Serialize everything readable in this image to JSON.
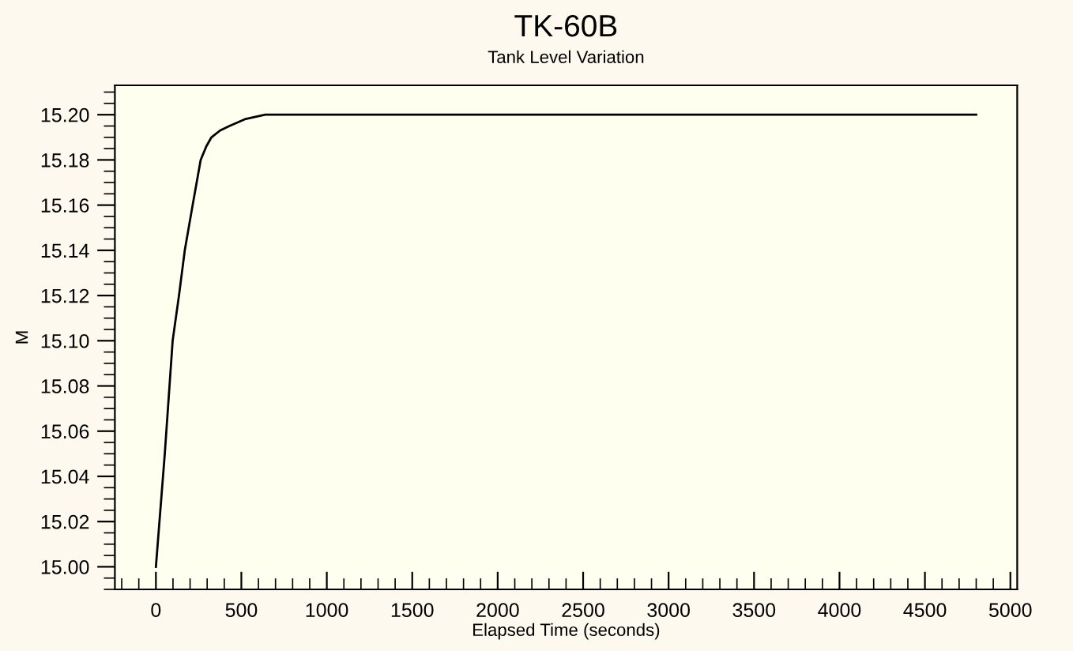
{
  "chart_data": {
    "type": "line",
    "title": "TK-60B",
    "subtitle": "Tank Level Variation",
    "xlabel": "Elapsed Time (seconds)",
    "ylabel": "M",
    "series": [
      {
        "color": "#000000",
        "x": [
          0,
          52,
          98,
          135,
          169,
          215,
          262,
          295,
          325,
          375,
          430,
          520,
          640,
          4800
        ],
        "values": [
          15.0,
          15.05,
          15.1,
          15.12,
          15.14,
          15.16,
          15.18,
          15.186,
          15.19,
          15.193,
          15.195,
          15.198,
          15.2,
          15.2
        ]
      }
    ],
    "xlim": [
      -240,
      5040
    ],
    "ylim": [
      14.99,
      15.213
    ],
    "xticks": [
      0,
      500,
      1000,
      1500,
      2000,
      2500,
      3000,
      3500,
      4000,
      4500,
      5000
    ],
    "yticks": [
      {
        "value": 15.0,
        "label": "15.00"
      },
      {
        "value": 15.02,
        "label": "15.02"
      },
      {
        "value": 15.04,
        "label": "15.04"
      },
      {
        "value": 15.06,
        "label": "15.06"
      },
      {
        "value": 15.08,
        "label": "15.08"
      },
      {
        "value": 15.1,
        "label": "15.10"
      },
      {
        "value": 15.12,
        "label": "15.12"
      },
      {
        "value": 15.14,
        "label": "15.14"
      },
      {
        "value": 15.16,
        "label": "15.16"
      },
      {
        "value": 15.18,
        "label": "15.18"
      },
      {
        "value": 15.2,
        "label": "15.20"
      }
    ],
    "grid": false,
    "marker": "none",
    "line_style": "solid"
  }
}
